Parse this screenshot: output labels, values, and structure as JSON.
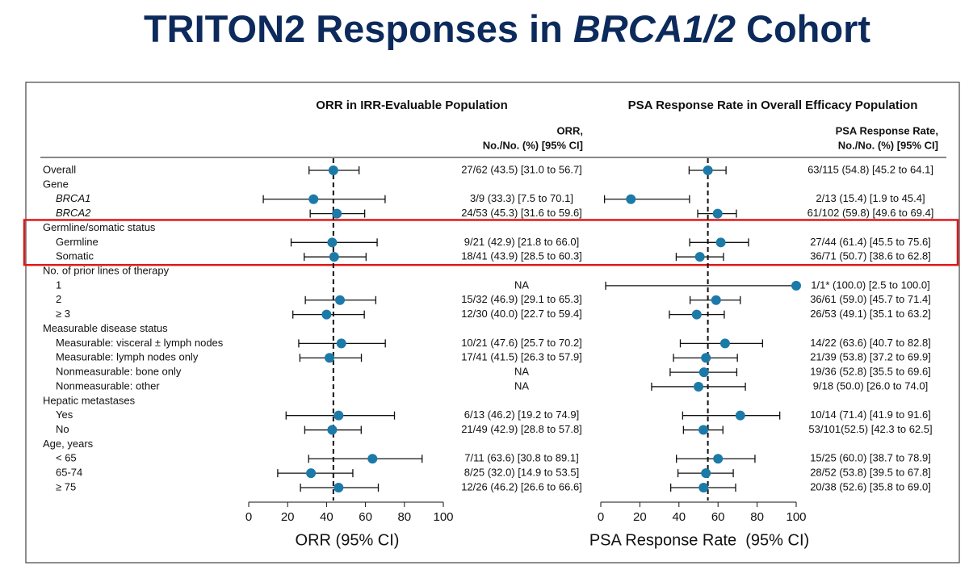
{
  "title": {
    "before": "TRITON2 Responses in",
    "italic": "BRCA1/2",
    "after": "Cohort"
  },
  "rows": [
    {
      "label": "Overall",
      "style": "item"
    },
    {
      "label": "Gene",
      "style": "header"
    },
    {
      "label": "BRCA1",
      "style": "italic"
    },
    {
      "label": "BRCA2",
      "style": "italic"
    },
    {
      "label": "Germline/somatic status",
      "style": "header"
    },
    {
      "label": "Germline",
      "style": "sub"
    },
    {
      "label": "Somatic",
      "style": "sub"
    },
    {
      "label": "No. of prior lines of therapy",
      "style": "header"
    },
    {
      "label": "1",
      "style": "sub"
    },
    {
      "label": "2",
      "style": "sub"
    },
    {
      "label": "≥ 3",
      "style": "sub"
    },
    {
      "label": "Measurable disease status",
      "style": "header"
    },
    {
      "label": "Measurable: visceral ± lymph nodes",
      "style": "sub"
    },
    {
      "label": "Measurable: lymph nodes only",
      "style": "sub"
    },
    {
      "label": "Nonmeasurable: bone only",
      "style": "sub"
    },
    {
      "label": "Nonmeasurable: other",
      "style": "sub"
    },
    {
      "label": "Hepatic metastases",
      "style": "header"
    },
    {
      "label": "Yes",
      "style": "sub"
    },
    {
      "label": "No",
      "style": "sub"
    },
    {
      "label": "Age, years",
      "style": "header"
    },
    {
      "label": "< 65",
      "style": "sub"
    },
    {
      "label": "65-74",
      "style": "sub"
    },
    {
      "label": "≥ 75",
      "style": "sub"
    }
  ],
  "highlighted_rows": [
    4,
    5,
    6
  ],
  "chart_data": [
    {
      "type": "forest",
      "title": "ORR in IRR-Evaluable Population",
      "column_header": [
        "ORR,",
        "No./No. (%) [95% CI]"
      ],
      "xlabel": "ORR (95% CI)",
      "xlim": [
        0,
        100
      ],
      "xticks": [
        0,
        20,
        40,
        60,
        80,
        100
      ],
      "color": "#1b7aa8",
      "reference_line": "overall",
      "values": [
        43.5,
        null,
        33.3,
        45.3,
        null,
        42.9,
        43.9,
        null,
        null,
        46.9,
        40.0,
        null,
        47.6,
        41.5,
        null,
        null,
        null,
        46.2,
        42.9,
        null,
        63.6,
        32.0,
        46.2
      ],
      "ci_low": [
        31.0,
        null,
        7.5,
        31.6,
        null,
        21.8,
        28.5,
        null,
        null,
        29.1,
        22.7,
        null,
        25.7,
        26.3,
        null,
        null,
        null,
        19.2,
        28.8,
        null,
        30.8,
        14.9,
        26.6
      ],
      "ci_high": [
        56.7,
        null,
        70.1,
        59.6,
        null,
        66.0,
        60.3,
        null,
        null,
        65.3,
        59.4,
        null,
        70.2,
        57.9,
        null,
        null,
        null,
        74.9,
        57.8,
        null,
        89.1,
        53.5,
        66.6
      ],
      "value_labels": [
        "27/62 (43.5) [31.0 to 56.7]",
        null,
        "3/9 (33.3) [7.5 to 70.1]",
        "24/53 (45.3) [31.6 to 59.6]",
        null,
        "9/21 (42.9) [21.8 to 66.0]",
        "18/41 (43.9) [28.5 to 60.3]",
        null,
        "NA",
        "15/32 (46.9) [29.1 to 65.3]",
        "12/30 (40.0) [22.7 to 59.4]",
        null,
        "10/21 (47.6) [25.7 to 70.2]",
        "17/41 (41.5) [26.3 to 57.9]",
        "NA",
        "NA",
        null,
        "6/13 (46.2) [19.2 to 74.9]",
        "21/49 (42.9) [28.8 to 57.8]",
        null,
        "7/11 (63.6) [30.8 to 89.1]",
        "8/25 (32.0) [14.9 to 53.5]",
        "12/26 (46.2) [26.6 to 66.6]"
      ]
    },
    {
      "type": "forest",
      "title": "PSA Response Rate in Overall Efficacy Population",
      "column_header": [
        "PSA Response Rate,",
        "No./No. (%) [95% CI]"
      ],
      "xlabel": "PSA Response Rate  (95% CI)",
      "xlim": [
        0,
        100
      ],
      "xticks": [
        0,
        20,
        40,
        60,
        80,
        100
      ],
      "color": "#1b7aa8",
      "reference_line": "overall",
      "values": [
        54.8,
        null,
        15.4,
        59.8,
        null,
        61.4,
        50.7,
        null,
        100.0,
        59.0,
        49.1,
        null,
        63.6,
        53.8,
        52.8,
        50.0,
        null,
        71.4,
        52.5,
        null,
        60.0,
        53.8,
        52.6
      ],
      "ci_low": [
        45.2,
        null,
        1.9,
        49.6,
        null,
        45.5,
        38.6,
        null,
        2.5,
        45.7,
        35.1,
        null,
        40.7,
        37.2,
        35.5,
        26.0,
        null,
        41.9,
        42.3,
        null,
        38.7,
        39.5,
        35.8
      ],
      "ci_high": [
        64.1,
        null,
        45.4,
        69.4,
        null,
        75.6,
        62.8,
        null,
        100.0,
        71.4,
        63.2,
        null,
        82.8,
        69.9,
        69.6,
        74.0,
        null,
        91.6,
        62.5,
        null,
        78.9,
        67.8,
        69.0
      ],
      "value_labels": [
        "63/115 (54.8) [45.2 to 64.1]",
        null,
        "2/13 (15.4) [1.9 to 45.4]",
        "61/102 (59.8) [49.6 to 69.4]",
        null,
        "27/44 (61.4) [45.5 to 75.6]",
        "36/71 (50.7) [38.6 to 62.8]",
        null,
        "1/1* (100.0) [2.5 to 100.0]",
        "36/61 (59.0) [45.7 to 71.4]",
        "26/53 (49.1) [35.1 to 63.2]",
        null,
        "14/22 (63.6) [40.7 to 82.8]",
        "21/39 (53.8) [37.2 to 69.9]",
        "19/36 (52.8) [35.5 to 69.6]",
        "9/18 (50.0) [26.0 to 74.0]",
        null,
        "10/14 (71.4) [41.9 to 91.6]",
        "53/101(52.5) [42.3 to 62.5]",
        null,
        "15/25 (60.0) [38.7 to 78.9]",
        "28/52 (53.8) [39.5 to 67.8]",
        "20/38 (52.6) [35.8 to 69.0]"
      ]
    }
  ]
}
